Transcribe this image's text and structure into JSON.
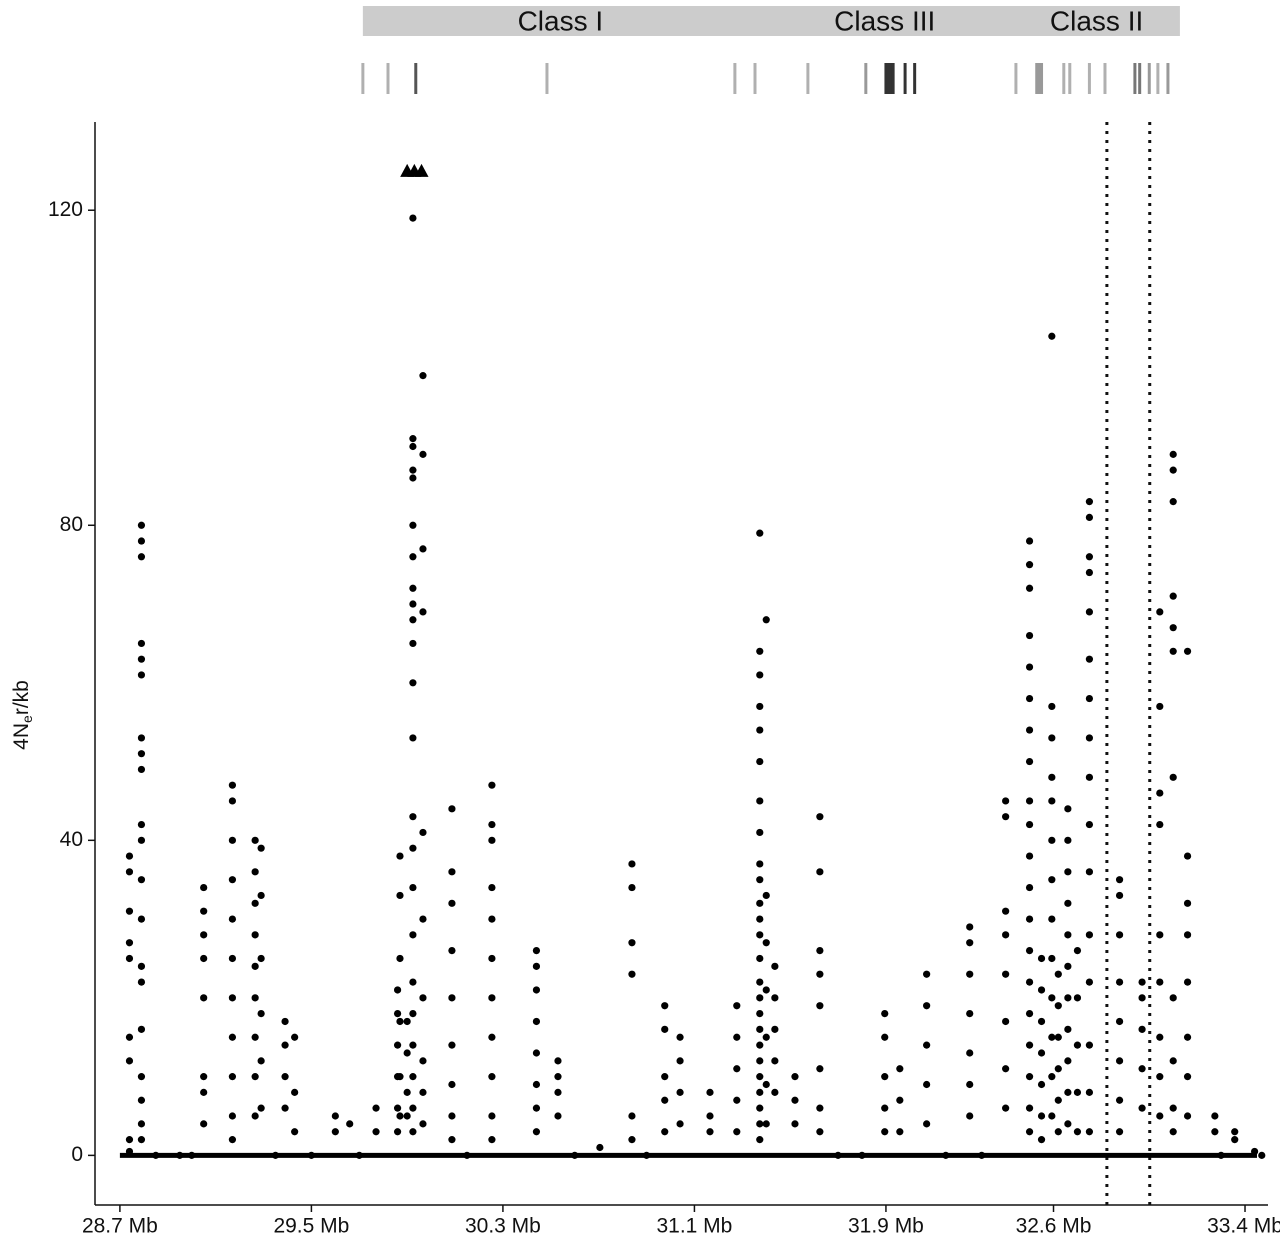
{
  "chart_data": {
    "type": "scatter",
    "y_label": {
      "prefix": "4N",
      "sub": "e",
      "suffix": "r/kb"
    },
    "xlim": [
      28.596,
      33.496
    ],
    "ylim": [
      -6.3,
      131.2
    ],
    "xticks": [
      {
        "value": 28.7,
        "label": "28.7 Mb"
      },
      {
        "value": 29.5,
        "label": "29.5 Mb"
      },
      {
        "value": 30.3,
        "label": "30.3 Mb"
      },
      {
        "value": 31.1,
        "label": "31.1 Mb"
      },
      {
        "value": 31.9,
        "label": "31.9 Mb"
      },
      {
        "value": 32.6,
        "label": "32.6 Mb"
      },
      {
        "value": 33.4,
        "label": "33.4 Mb"
      }
    ],
    "yticks": [
      0,
      40,
      80,
      120
    ],
    "color": "#000000",
    "region_bar": {
      "start": 29.715,
      "end": 33.128,
      "color": "#cccccc"
    },
    "regions": [
      {
        "label": "Class I",
        "center": 30.54
      },
      {
        "label": "Class III",
        "center": 31.895
      },
      {
        "label": "Class II",
        "center": 32.78
      }
    ],
    "genes": [
      {
        "x": 29.715,
        "color": "#b0b0b0"
      },
      {
        "x": 29.82,
        "color": "#b0b0b0"
      },
      {
        "x": 29.936,
        "color": "#555555"
      },
      {
        "x": 30.484,
        "color": "#b0b0b0"
      },
      {
        "x": 31.269,
        "color": "#b0b0b0"
      },
      {
        "x": 31.353,
        "color": "#b0b0b0"
      },
      {
        "x": 31.574,
        "color": "#b0b0b0"
      },
      {
        "x": 31.816,
        "color": "#999999"
      },
      {
        "x": 31.9,
        "color": "#333333"
      },
      {
        "x": 31.91,
        "color": "#333333"
      },
      {
        "x": 31.92,
        "color": "#333333"
      },
      {
        "x": 31.93,
        "color": "#333333"
      },
      {
        "x": 31.98,
        "color": "#333333"
      },
      {
        "x": 32.02,
        "color": "#333333"
      },
      {
        "x": 32.443,
        "color": "#b0b0b0"
      },
      {
        "x": 32.53,
        "color": "#999999"
      },
      {
        "x": 32.54,
        "color": "#999999"
      },
      {
        "x": 32.55,
        "color": "#999999"
      },
      {
        "x": 32.643,
        "color": "#b0b0b0"
      },
      {
        "x": 32.668,
        "color": "#b0b0b0"
      },
      {
        "x": 32.75,
        "color": "#b0b0b0"
      },
      {
        "x": 32.815,
        "color": "#b0b0b0"
      },
      {
        "x": 32.94,
        "color": "#777777"
      },
      {
        "x": 32.96,
        "color": "#777777"
      },
      {
        "x": 33.0,
        "color": "#999999"
      },
      {
        "x": 33.036,
        "color": "#b0b0b0"
      },
      {
        "x": 33.078,
        "color": "#999999"
      }
    ],
    "vlines": [
      32.823,
      33.002
    ],
    "capped": [
      {
        "x": 29.9,
        "y": 125
      },
      {
        "x": 29.93,
        "y": 125
      },
      {
        "x": 29.96,
        "y": 125
      }
    ],
    "columns": [
      {
        "x": 28.74,
        "y": [
          38,
          36,
          31,
          27,
          25,
          15,
          12,
          2,
          0.5
        ]
      },
      {
        "x": 28.79,
        "y": [
          80,
          78,
          76,
          65,
          63,
          61,
          53,
          51,
          49,
          42,
          40,
          35,
          30,
          24,
          22,
          16,
          10,
          7,
          4,
          2
        ]
      },
      {
        "x": 29.05,
        "y": [
          34,
          31,
          28,
          25,
          20,
          10,
          8,
          4
        ]
      },
      {
        "x": 29.17,
        "y": [
          47,
          45,
          40,
          35,
          30,
          25,
          20,
          15,
          10,
          5,
          2
        ]
      },
      {
        "x": 29.265,
        "y": [
          40,
          36,
          32,
          28,
          24,
          20,
          15,
          10,
          5
        ]
      },
      {
        "x": 29.29,
        "y": [
          39,
          33,
          25,
          18,
          12,
          6
        ]
      },
      {
        "x": 29.39,
        "y": [
          17,
          14,
          10,
          6
        ]
      },
      {
        "x": 29.43,
        "y": [
          15,
          8,
          3
        ]
      },
      {
        "x": 29.6,
        "y": [
          5,
          3
        ]
      },
      {
        "x": 29.66,
        "y": [
          4
        ]
      },
      {
        "x": 29.77,
        "y": [
          6,
          3
        ]
      },
      {
        "x": 29.86,
        "y": [
          21,
          18,
          14,
          10,
          6,
          3
        ]
      },
      {
        "x": 29.87,
        "y": [
          38,
          33,
          25,
          17,
          10,
          5
        ]
      },
      {
        "x": 29.9,
        "y": [
          17,
          13,
          8,
          5
        ]
      },
      {
        "x": 29.924,
        "y": [
          119,
          91,
          90,
          87,
          86,
          80,
          76,
          72,
          70,
          68,
          65,
          60,
          53,
          43,
          39,
          34,
          28,
          22,
          18,
          14,
          10,
          6,
          3
        ]
      },
      {
        "x": 29.966,
        "y": [
          99,
          89,
          77,
          69,
          41,
          30,
          20,
          12,
          8,
          4
        ]
      },
      {
        "x": 30.087,
        "y": [
          44,
          36,
          32,
          26,
          20,
          14,
          9,
          5,
          2
        ]
      },
      {
        "x": 30.254,
        "y": [
          47,
          42,
          40,
          34,
          30,
          25,
          20,
          15,
          10,
          5,
          2
        ]
      },
      {
        "x": 30.44,
        "y": [
          26,
          24,
          21,
          17,
          13,
          9,
          6,
          3
        ]
      },
      {
        "x": 30.53,
        "y": [
          12,
          10,
          8,
          5
        ]
      },
      {
        "x": 30.705,
        "y": [
          1
        ]
      },
      {
        "x": 30.839,
        "y": [
          37,
          34,
          27,
          23,
          5,
          2
        ]
      },
      {
        "x": 30.976,
        "y": [
          19,
          16,
          10,
          7,
          3
        ]
      },
      {
        "x": 31.04,
        "y": [
          15,
          12,
          8,
          4
        ]
      },
      {
        "x": 31.165,
        "y": [
          8,
          5,
          3
        ]
      },
      {
        "x": 31.277,
        "y": [
          19,
          15,
          11,
          7,
          3
        ]
      },
      {
        "x": 31.373,
        "y": [
          79,
          64,
          61,
          57,
          54,
          50,
          45,
          41,
          37,
          35,
          32,
          30,
          28,
          25,
          22,
          20,
          18,
          16,
          14,
          12,
          10,
          8,
          6,
          4,
          2
        ]
      },
      {
        "x": 31.4,
        "y": [
          68,
          33,
          27,
          21,
          15,
          9,
          4
        ]
      },
      {
        "x": 31.436,
        "y": [
          24,
          20,
          16,
          12,
          8
        ]
      },
      {
        "x": 31.52,
        "y": [
          10,
          7,
          4
        ]
      },
      {
        "x": 31.624,
        "y": [
          43,
          36,
          26,
          23,
          19,
          11,
          6,
          3
        ]
      },
      {
        "x": 31.895,
        "y": [
          18,
          15,
          10,
          6,
          3
        ]
      },
      {
        "x": 31.958,
        "y": [
          11,
          7,
          3
        ]
      },
      {
        "x": 32.07,
        "y": [
          23,
          19,
          14,
          9,
          4
        ]
      },
      {
        "x": 32.25,
        "y": [
          29,
          27,
          23,
          18,
          13,
          9,
          5
        ]
      },
      {
        "x": 32.4,
        "y": [
          45,
          43,
          31,
          28,
          23,
          17,
          11,
          6
        ]
      },
      {
        "x": 32.5,
        "y": [
          78,
          75,
          72,
          66,
          62,
          58,
          54,
          50,
          45,
          42,
          38,
          34,
          30,
          26,
          22,
          18,
          14,
          10,
          6,
          3
        ]
      },
      {
        "x": 32.55,
        "y": [
          25,
          21,
          17,
          13,
          9,
          5,
          2
        ]
      },
      {
        "x": 32.593,
        "y": [
          104,
          57,
          53,
          48,
          45,
          40,
          35,
          30,
          25,
          20,
          15,
          10,
          5
        ]
      },
      {
        "x": 32.62,
        "y": [
          23,
          19,
          15,
          11,
          7,
          3
        ]
      },
      {
        "x": 32.66,
        "y": [
          44,
          40,
          36,
          32,
          28,
          24,
          20,
          16,
          12,
          8,
          4
        ]
      },
      {
        "x": 32.7,
        "y": [
          26,
          20,
          14,
          8,
          3
        ]
      },
      {
        "x": 32.75,
        "y": [
          83,
          81,
          76,
          74,
          69,
          63,
          58,
          53,
          48,
          42,
          36,
          28,
          22,
          14,
          8,
          3
        ]
      },
      {
        "x": 32.876,
        "y": [
          35,
          33,
          28,
          22,
          17,
          12,
          7,
          3
        ]
      },
      {
        "x": 32.97,
        "y": [
          22,
          20,
          16,
          11,
          6
        ]
      },
      {
        "x": 33.044,
        "y": [
          69,
          57,
          46,
          42,
          28,
          22,
          15,
          10,
          5
        ]
      },
      {
        "x": 33.1,
        "y": [
          89,
          87,
          83,
          71,
          67,
          64,
          48,
          20,
          12,
          6,
          3
        ]
      },
      {
        "x": 33.16,
        "y": [
          64,
          38,
          32,
          28,
          22,
          15,
          10,
          5
        ]
      },
      {
        "x": 33.274,
        "y": [
          5,
          3
        ]
      },
      {
        "x": 33.357,
        "y": [
          3,
          2
        ]
      },
      {
        "x": 33.44,
        "y": [
          0.5
        ]
      },
      {
        "x": 28.85,
        "y": [
          0
        ]
      },
      {
        "x": 28.95,
        "y": [
          0
        ]
      },
      {
        "x": 29.0,
        "y": [
          0
        ]
      },
      {
        "x": 29.35,
        "y": [
          0
        ]
      },
      {
        "x": 29.5,
        "y": [
          0
        ]
      },
      {
        "x": 29.7,
        "y": [
          0
        ]
      },
      {
        "x": 30.15,
        "y": [
          0
        ]
      },
      {
        "x": 30.6,
        "y": [
          0
        ]
      },
      {
        "x": 30.9,
        "y": [
          0
        ]
      },
      {
        "x": 31.7,
        "y": [
          0
        ]
      },
      {
        "x": 31.8,
        "y": [
          0
        ]
      },
      {
        "x": 32.15,
        "y": [
          0
        ]
      },
      {
        "x": 32.3,
        "y": [
          0
        ]
      },
      {
        "x": 33.3,
        "y": [
          0
        ]
      },
      {
        "x": 33.47,
        "y": [
          0
        ]
      }
    ]
  }
}
